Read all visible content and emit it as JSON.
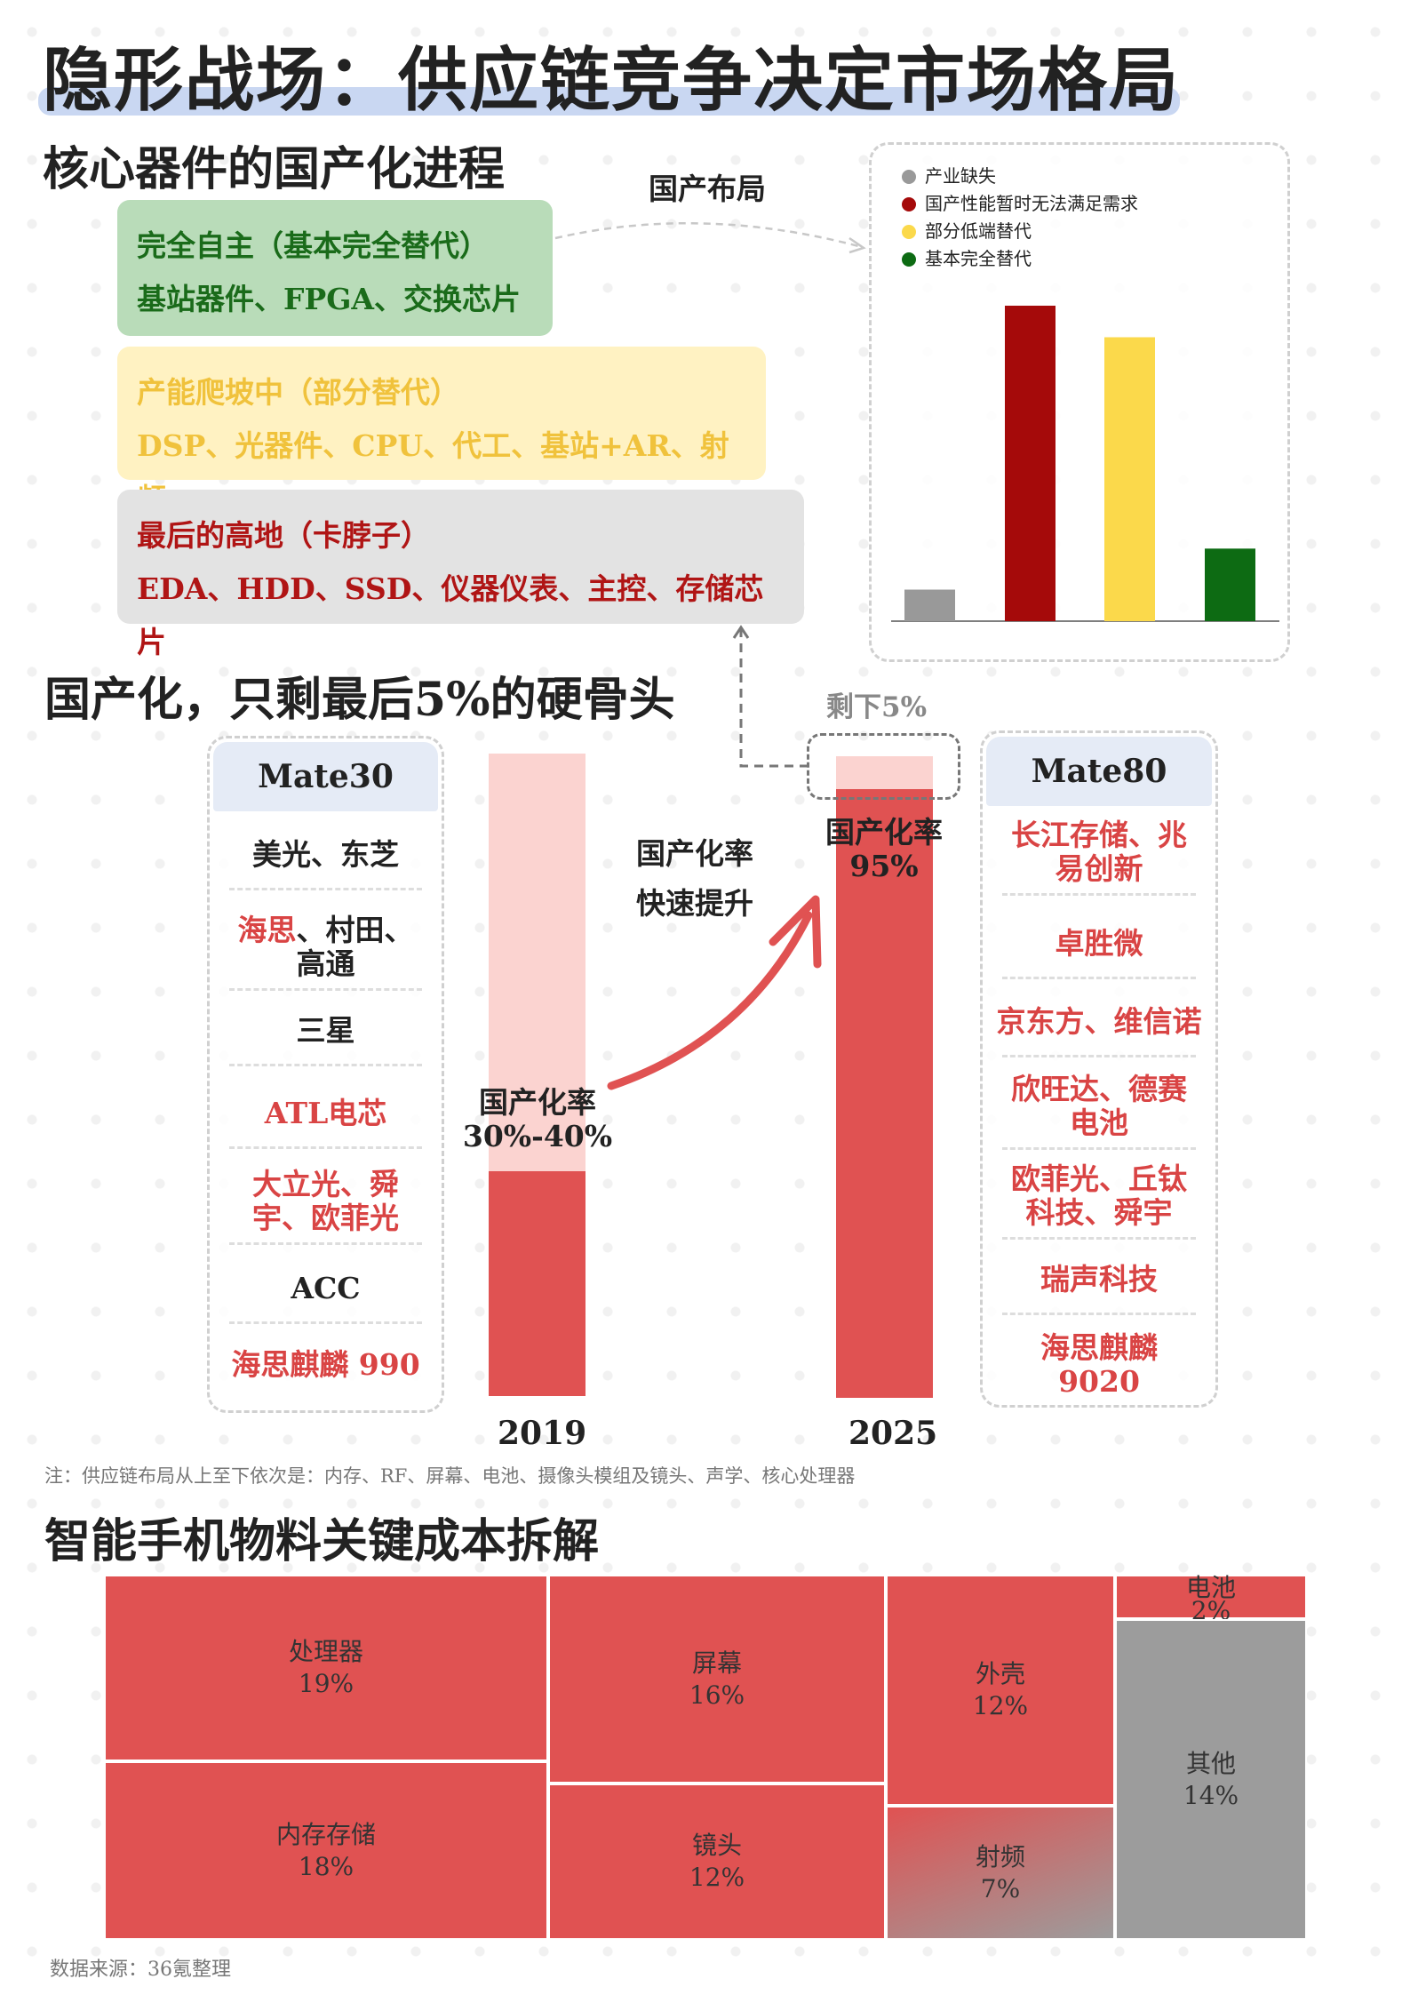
{
  "title": "隐形战场：供应链竞争决定市场格局",
  "section1": {
    "heading": "核心器件的国产化进程",
    "tiers": [
      {
        "label": "完全自主（基本完全替代）",
        "items": "基站器件、FPGA、交换芯片",
        "bg": "#b9dcb9",
        "color": "#1a6b1a"
      },
      {
        "label": "产能爬坡中（部分替代）",
        "items": "DSP、光器件、CPU、代工、基站+AR、射频",
        "bg": "#fff2c2",
        "color": "#f0c23c"
      },
      {
        "label": "最后的高地（卡脖子）",
        "items": "EDA、HDD、SSD、仪器仪表、主控、存储芯片",
        "bg": "#e3e3e3",
        "color": "#b01515"
      }
    ],
    "layout_label": "国产布局",
    "chart_data": {
      "type": "bar",
      "categories": [
        "产业缺失",
        "国产性能暂时无法满足需求",
        "部分低端替代",
        "基本完全替代"
      ],
      "values": [
        10,
        100,
        90,
        23
      ],
      "colors": [
        "#999999",
        "#a50a0a",
        "#fbd94b",
        "#0d6b13"
      ],
      "legend": "top-left",
      "grid": false
    }
  },
  "section2": {
    "heading": "国产化，只剩最后5%的硬骨头",
    "mate30": {
      "title": "Mate30",
      "items": [
        {
          "text": "美光、东芝",
          "red": false
        },
        {
          "text": "海思、村田、\n高通",
          "red": "partial",
          "red_part": "海思",
          "rest": "、村田、\n高通"
        },
        {
          "text": "三星",
          "red": false
        },
        {
          "text": "ATL电芯",
          "red": true
        },
        {
          "text": "大立光、舜\n宇、欧菲光",
          "red": true
        },
        {
          "text": "ACC",
          "red": false
        },
        {
          "text": "海思麒麟 990",
          "red": true
        }
      ]
    },
    "mate80": {
      "title": "Mate80",
      "items": [
        {
          "text": "长江存储、兆\n易创新"
        },
        {
          "text": "卓胜微"
        },
        {
          "text": "京东方、维信诺"
        },
        {
          "text": "欣旺达、德赛\n电池"
        },
        {
          "text": "欧菲光、丘钛\n科技、舜宇"
        },
        {
          "text": "瑞声科技"
        },
        {
          "text": "海思麒麟\n9020"
        }
      ]
    },
    "bar2019": {
      "year": "2019",
      "label": "国产化率",
      "value": "30%-40%",
      "fill": 0.35
    },
    "bar2025": {
      "year": "2025",
      "label": "国产化率",
      "value": "95%",
      "fill": 0.95,
      "remain": "剩下5%"
    },
    "growth_label_1": "国产化率",
    "growth_label_2": "快速提升",
    "note": "注：供应链布局从上至下依次是：内存、RF、屏幕、电池、摄像头模组及镜头、声学、核心处理器"
  },
  "section3": {
    "heading": "智能手机物料关键成本拆解",
    "treemap": [
      {
        "name": "处理器",
        "pct": "19%"
      },
      {
        "name": "内存存储",
        "pct": "18%"
      },
      {
        "name": "屏幕",
        "pct": "16%"
      },
      {
        "name": "镜头",
        "pct": "12%"
      },
      {
        "name": "外壳",
        "pct": "12%"
      },
      {
        "name": "射频",
        "pct": "7%"
      },
      {
        "name": "电池",
        "pct": "2%"
      },
      {
        "name": "其他",
        "pct": "14%"
      }
    ],
    "source": "数据来源：36氪整理"
  }
}
